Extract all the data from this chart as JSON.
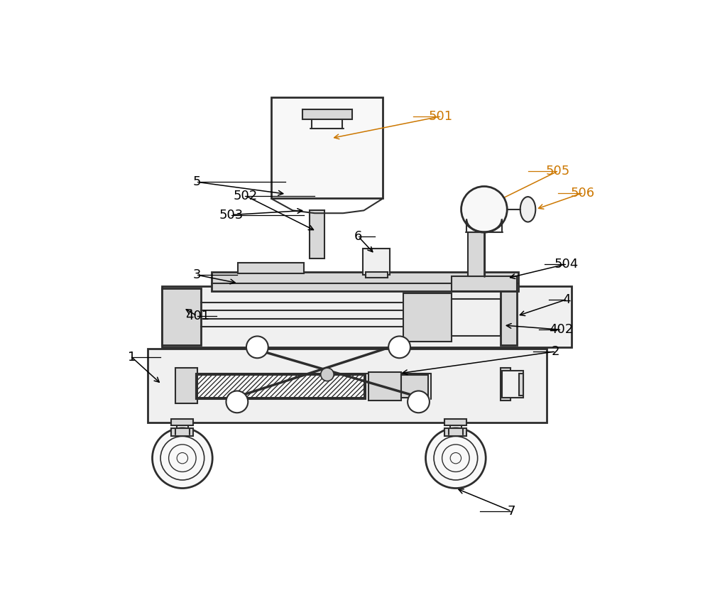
{
  "fig_width": 10.0,
  "fig_height": 8.59,
  "dpi": 100,
  "bg": "#ffffff",
  "lc": "#2d2d2d",
  "lf": "#f0f0f0",
  "lm": "#d8d8d8",
  "orange": "#cc7700"
}
